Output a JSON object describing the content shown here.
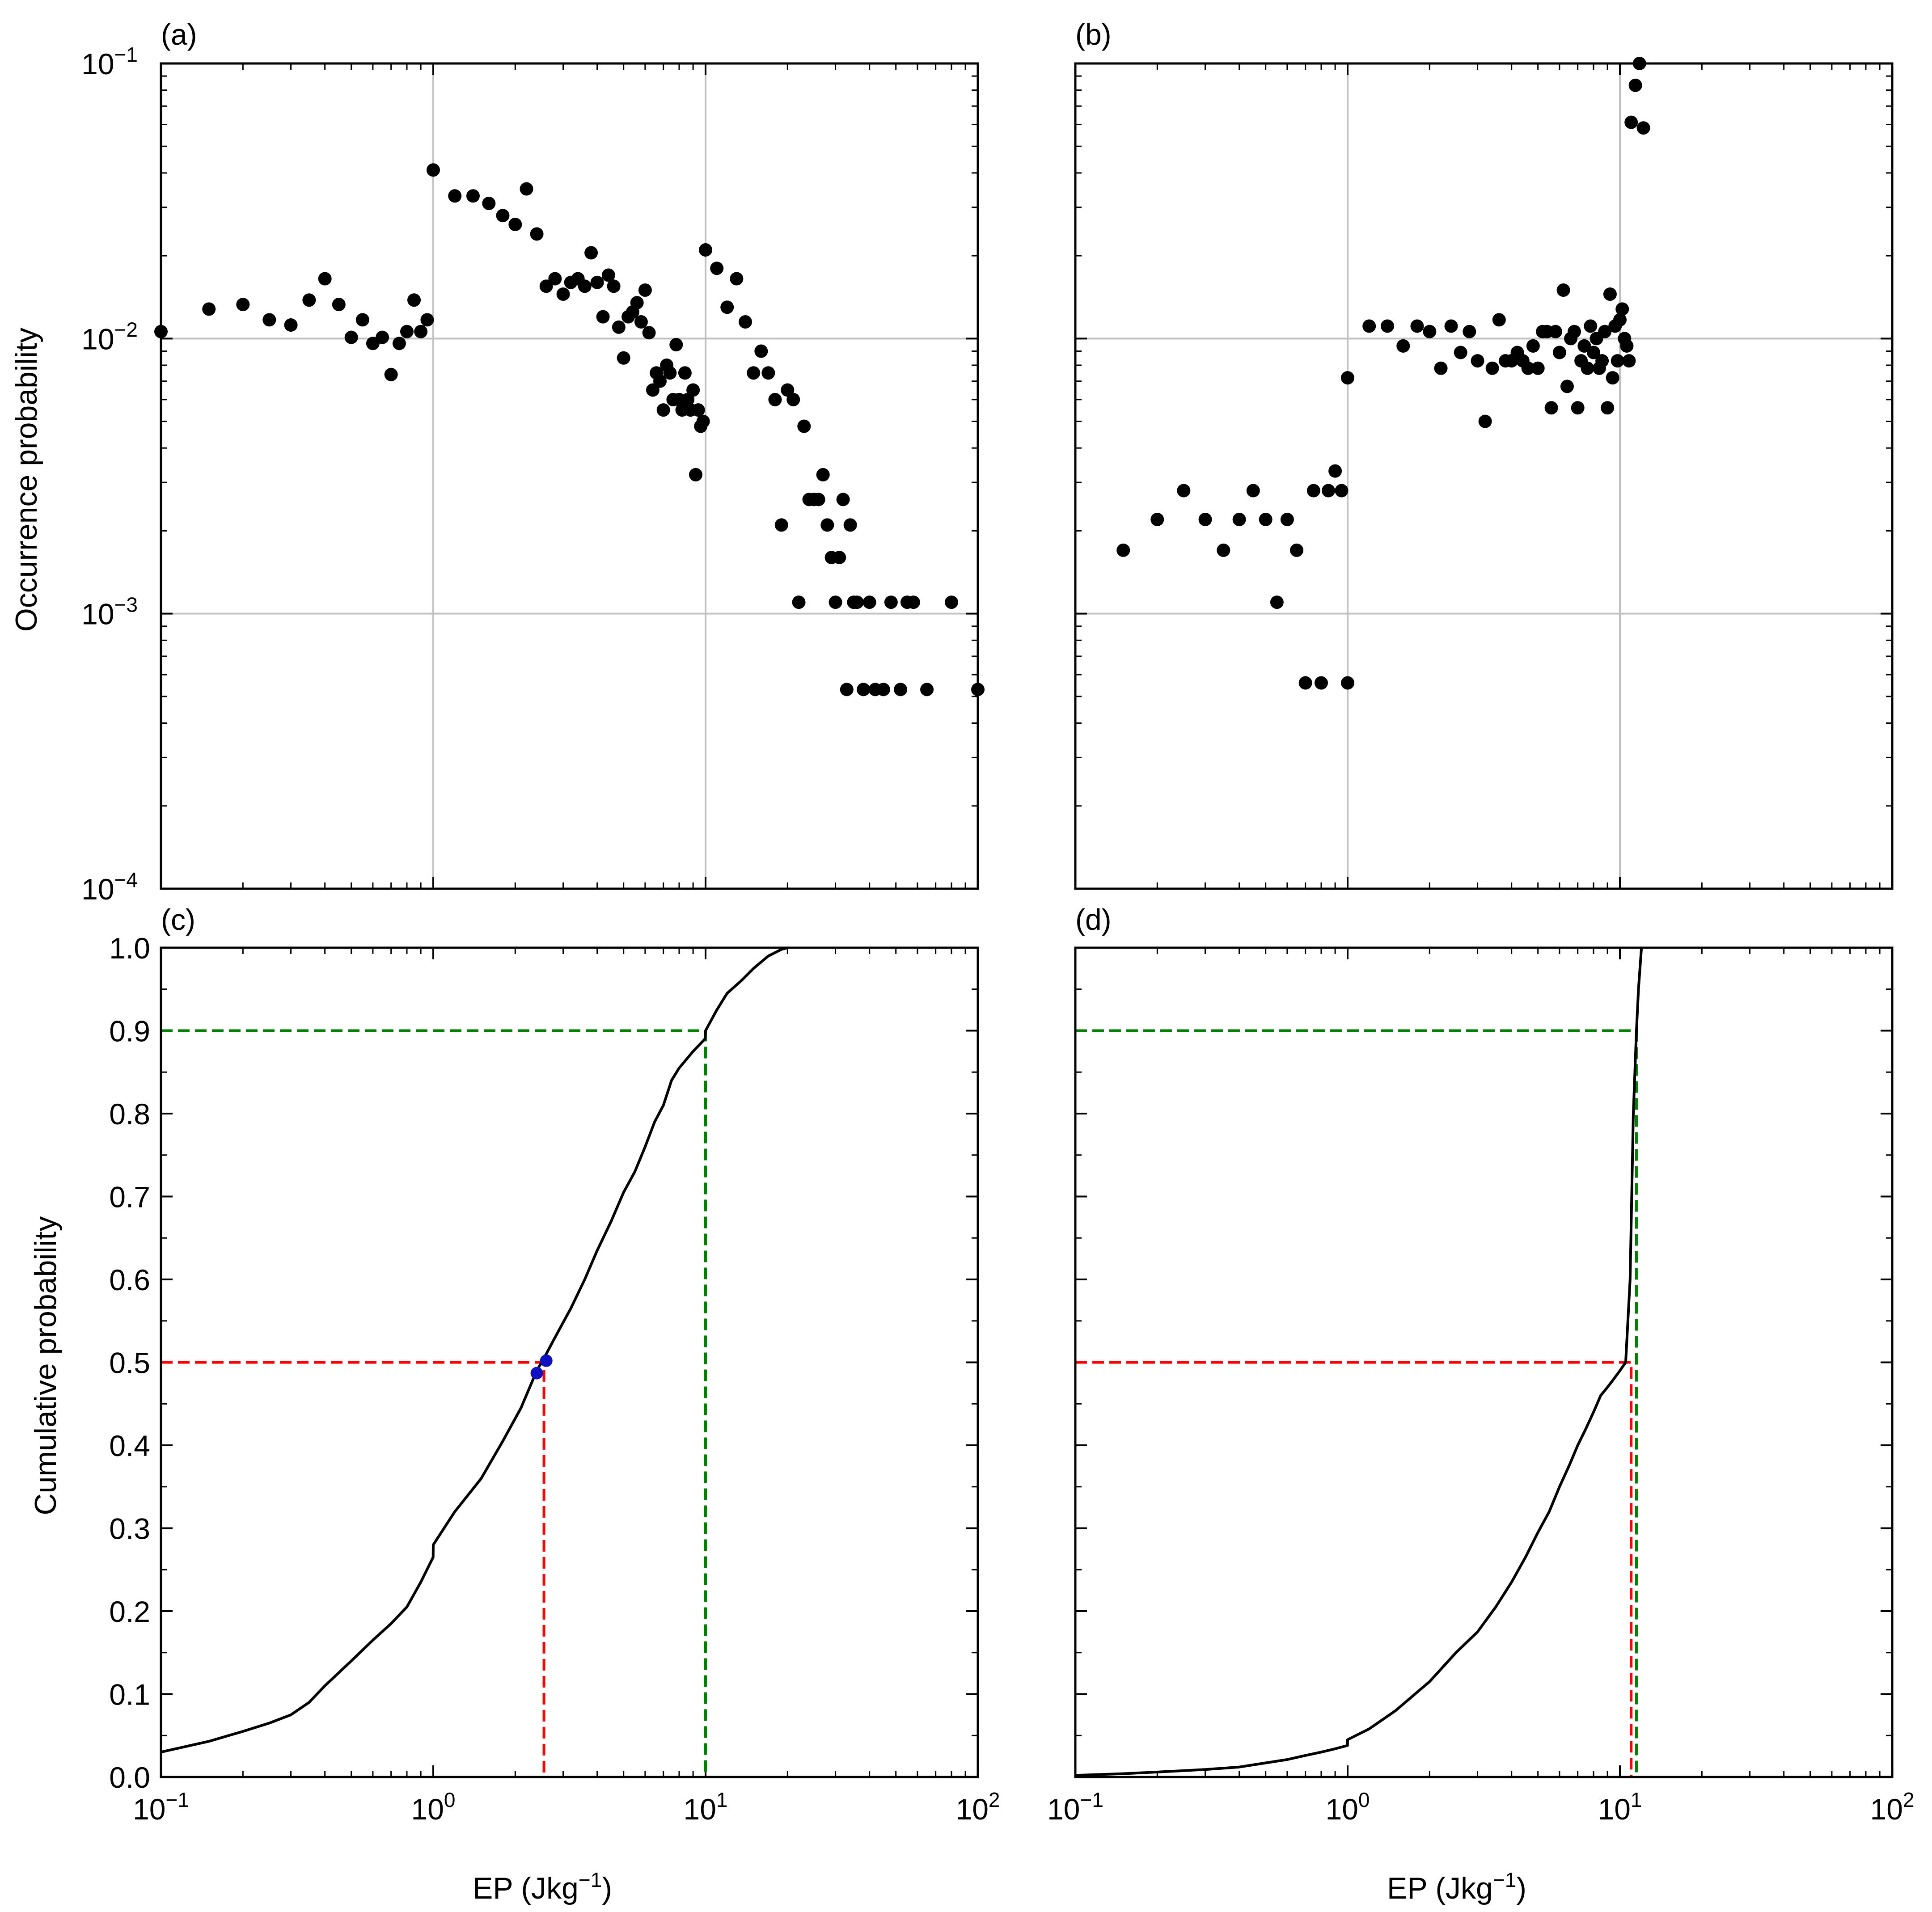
{
  "figure": {
    "xlabel": "EP (Jkg",
    "xlabel_sup": "−1",
    "xlabel_close": ")",
    "colors": {
      "axis": "#000000",
      "grid": "#c0c0c0",
      "points": "#000000",
      "median": "#ff0000",
      "p90": "#008000",
      "highlight": "#1010c0"
    }
  },
  "chart_data": [
    {
      "id": "a",
      "panel_label": "(a)",
      "type": "scatter",
      "xscale": "log",
      "yscale": "log",
      "xlim": [
        0.1,
        100
      ],
      "ylim": [
        0.0001,
        0.1
      ],
      "ylabel": "Occurrence probability",
      "grid": true,
      "show_x_ticklabels": false,
      "show_y_ticklabels": true,
      "x": [
        0.1,
        0.15,
        0.2,
        0.25,
        0.3,
        0.35,
        0.4,
        0.45,
        0.5,
        0.55,
        0.6,
        0.65,
        0.7,
        0.75,
        0.8,
        0.85,
        0.9,
        0.95,
        1.0,
        1.2,
        1.4,
        1.6,
        1.8,
        2.0,
        2.2,
        2.4,
        2.6,
        2.8,
        3.0,
        3.2,
        3.4,
        3.6,
        3.8,
        4.0,
        4.2,
        4.4,
        4.6,
        4.8,
        5.0,
        5.2,
        5.4,
        5.6,
        5.8,
        6.0,
        6.2,
        6.4,
        6.6,
        6.8,
        7.0,
        7.2,
        7.4,
        7.6,
        7.8,
        8.0,
        8.2,
        8.4,
        8.6,
        8.8,
        9.0,
        9.2,
        9.4,
        9.6,
        9.8,
        10.0,
        11.0,
        12.0,
        13.0,
        14.0,
        15.0,
        16.0,
        17.0,
        18.0,
        19.0,
        20.0,
        21.0,
        22.0,
        23.0,
        24.0,
        25.0,
        26.0,
        27.0,
        28.0,
        29.0,
        30.0,
        31.0,
        32.0,
        33.0,
        34.0,
        35.0,
        36.0,
        38.0,
        40.0,
        42.0,
        45.0,
        48.0,
        52.0,
        55.0,
        58.0,
        65.0,
        80.0,
        100.0
      ],
      "y": [
        0.0106,
        0.0128,
        0.0133,
        0.0117,
        0.0112,
        0.0138,
        0.0165,
        0.0133,
        0.0101,
        0.0117,
        0.0096,
        0.0101,
        0.0074,
        0.0096,
        0.0106,
        0.0138,
        0.0106,
        0.0117,
        0.041,
        0.033,
        0.033,
        0.031,
        0.028,
        0.026,
        0.035,
        0.024,
        0.0155,
        0.0165,
        0.0145,
        0.016,
        0.0165,
        0.0155,
        0.0205,
        0.016,
        0.012,
        0.017,
        0.0155,
        0.011,
        0.0085,
        0.012,
        0.0125,
        0.0135,
        0.0115,
        0.015,
        0.0105,
        0.0065,
        0.0075,
        0.007,
        0.0055,
        0.008,
        0.0075,
        0.006,
        0.0095,
        0.006,
        0.0055,
        0.0075,
        0.006,
        0.0055,
        0.0065,
        0.0032,
        0.0055,
        0.0048,
        0.005,
        0.021,
        0.018,
        0.013,
        0.0165,
        0.0115,
        0.0075,
        0.009,
        0.0075,
        0.006,
        0.0021,
        0.0065,
        0.006,
        0.0011,
        0.0048,
        0.0026,
        0.0026,
        0.0026,
        0.0032,
        0.0021,
        0.0016,
        0.0011,
        0.0016,
        0.0026,
        0.00053,
        0.0021,
        0.0011,
        0.0011,
        0.00053,
        0.0011,
        0.00053,
        0.00053,
        0.0011,
        0.00053,
        0.0011,
        0.0011,
        0.00053,
        0.0011,
        0.00053
      ]
    },
    {
      "id": "b",
      "panel_label": "(b)",
      "type": "scatter",
      "xscale": "log",
      "yscale": "log",
      "xlim": [
        0.1,
        100
      ],
      "ylim": [
        0.0001,
        0.1
      ],
      "ylabel": "",
      "grid": true,
      "show_x_ticklabels": false,
      "show_y_ticklabels": false,
      "x": [
        0.15,
        0.2,
        0.25,
        0.3,
        0.35,
        0.4,
        0.45,
        0.5,
        0.55,
        0.6,
        0.65,
        0.7,
        0.75,
        0.8,
        0.85,
        0.9,
        0.95,
        1.0,
        1.0,
        1.2,
        1.4,
        1.6,
        1.8,
        2.0,
        2.2,
        2.4,
        2.6,
        2.8,
        3.0,
        3.2,
        3.4,
        3.6,
        3.8,
        4.0,
        4.2,
        4.4,
        4.6,
        4.8,
        5.0,
        5.2,
        5.4,
        5.6,
        5.8,
        6.0,
        6.2,
        6.4,
        6.6,
        6.8,
        7.0,
        7.2,
        7.4,
        7.6,
        7.8,
        8.0,
        8.2,
        8.4,
        8.6,
        8.8,
        9.0,
        9.2,
        9.4,
        9.6,
        9.8,
        10.0,
        10.2,
        10.4,
        10.6,
        10.8,
        11.0,
        11.4,
        11.8,
        12.2
      ],
      "y": [
        0.0017,
        0.0022,
        0.0028,
        0.0022,
        0.0017,
        0.0022,
        0.0028,
        0.0022,
        0.0011,
        0.0022,
        0.0017,
        0.00056,
        0.0028,
        0.00056,
        0.0028,
        0.0033,
        0.0028,
        0.00056,
        0.0072,
        0.0111,
        0.0111,
        0.0094,
        0.0111,
        0.0106,
        0.0078,
        0.0111,
        0.0089,
        0.0106,
        0.0083,
        0.005,
        0.0078,
        0.0117,
        0.0083,
        0.0083,
        0.0089,
        0.0083,
        0.0078,
        0.0094,
        0.0078,
        0.0106,
        0.0106,
        0.0056,
        0.0106,
        0.0089,
        0.015,
        0.0067,
        0.01,
        0.0106,
        0.0056,
        0.0083,
        0.0094,
        0.0078,
        0.0111,
        0.0089,
        0.01,
        0.0078,
        0.0083,
        0.0106,
        0.0056,
        0.0145,
        0.0072,
        0.0111,
        0.0083,
        0.0117,
        0.0128,
        0.01,
        0.0094,
        0.0083,
        0.0611,
        0.0833,
        0.1,
        0.0583
      ]
    },
    {
      "id": "c",
      "panel_label": "(c)",
      "type": "line",
      "xscale": "log",
      "yscale": "linear",
      "xlim": [
        0.1,
        100
      ],
      "ylim": [
        0,
        1
      ],
      "ylabel": "Cumulative probability",
      "grid": false,
      "show_x_ticklabels": true,
      "show_y_ticklabels": true,
      "yticks": [
        0.0,
        0.1,
        0.2,
        0.3,
        0.4,
        0.5,
        0.6,
        0.7,
        0.8,
        0.9,
        1.0
      ],
      "yticklabels": [
        "0.0",
        "0.1",
        "0.2",
        "0.3",
        "0.4",
        "0.5",
        "0.6",
        "0.7",
        "0.8",
        "0.9",
        "1.0"
      ],
      "x": [
        0.1,
        0.15,
        0.2,
        0.25,
        0.3,
        0.35,
        0.4,
        0.5,
        0.6,
        0.7,
        0.8,
        0.9,
        0.999,
        1.0,
        1.2,
        1.5,
        1.8,
        2.1,
        2.4,
        2.55,
        2.8,
        3.2,
        3.6,
        4.0,
        4.5,
        5.0,
        5.5,
        6.0,
        6.5,
        7.0,
        7.5,
        8.0,
        9.0,
        9.95,
        10.0,
        11.0,
        12.0,
        13.5,
        15.0,
        17.0,
        19.0,
        20.0
      ],
      "y": [
        0.03,
        0.043,
        0.055,
        0.065,
        0.075,
        0.09,
        0.11,
        0.14,
        0.165,
        0.185,
        0.205,
        0.235,
        0.265,
        0.28,
        0.32,
        0.36,
        0.405,
        0.445,
        0.49,
        0.505,
        0.53,
        0.565,
        0.6,
        0.635,
        0.67,
        0.705,
        0.73,
        0.76,
        0.79,
        0.81,
        0.84,
        0.855,
        0.875,
        0.89,
        0.9,
        0.925,
        0.945,
        0.96,
        0.975,
        0.99,
        0.998,
        1.0
      ],
      "median": {
        "x": 2.55,
        "y": 0.5,
        "label": ""
      },
      "p90": {
        "x": 10.0,
        "y": 0.9,
        "label": ""
      },
      "highlight_points": [
        {
          "x": 2.4,
          "y": 0.487
        },
        {
          "x": 2.6,
          "y": 0.502
        }
      ]
    },
    {
      "id": "d",
      "panel_label": "(d)",
      "type": "line",
      "xscale": "log",
      "yscale": "linear",
      "xlim": [
        0.1,
        100
      ],
      "ylim": [
        0,
        1
      ],
      "ylabel": "",
      "grid": false,
      "show_x_ticklabels": true,
      "show_y_ticklabels": false,
      "yticks": [
        0.0,
        0.1,
        0.2,
        0.3,
        0.4,
        0.5,
        0.6,
        0.7,
        0.8,
        0.9,
        1.0
      ],
      "x": [
        0.1,
        0.15,
        0.2,
        0.3,
        0.4,
        0.5,
        0.6,
        0.7,
        0.8,
        0.9,
        0.999,
        1.0,
        1.2,
        1.5,
        2.0,
        2.5,
        3.0,
        3.5,
        4.0,
        4.5,
        5.0,
        5.5,
        6.0,
        6.5,
        7.0,
        7.5,
        8.0,
        8.5,
        9.0,
        9.5,
        10.0,
        10.5,
        10.9,
        11.2,
        11.5,
        11.7,
        12.0
      ],
      "y": [
        0.002,
        0.004,
        0.006,
        0.009,
        0.012,
        0.017,
        0.021,
        0.026,
        0.03,
        0.034,
        0.038,
        0.045,
        0.058,
        0.08,
        0.115,
        0.15,
        0.175,
        0.205,
        0.235,
        0.265,
        0.295,
        0.32,
        0.35,
        0.375,
        0.4,
        0.42,
        0.44,
        0.46,
        0.47,
        0.48,
        0.49,
        0.5,
        0.6,
        0.8,
        0.9,
        0.95,
        1.0
      ],
      "median": {
        "x": 11.0,
        "y": 0.5,
        "label": ""
      },
      "p90": {
        "x": 11.5,
        "y": 0.9,
        "label": ""
      }
    }
  ]
}
